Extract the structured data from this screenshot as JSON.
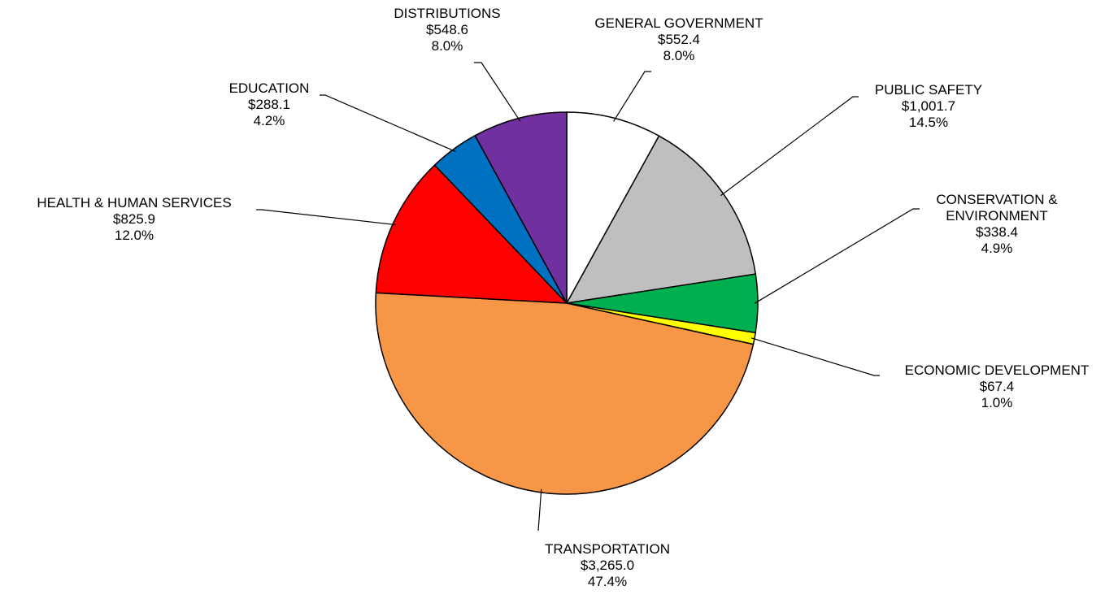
{
  "chart_data": {
    "type": "pie",
    "start_angle_deg": 0,
    "direction": "clockwise",
    "slices": [
      {
        "label": "GENERAL GOVERNMENT",
        "lines": [
          "GENERAL GOVERNMENT"
        ],
        "value": 552.4,
        "value_label": "$552.4",
        "percent_label": "8.0%",
        "color": "#ffffff"
      },
      {
        "label": "PUBLIC SAFETY",
        "lines": [
          "PUBLIC SAFETY"
        ],
        "value": 1001.7,
        "value_label": "$1,001.7",
        "percent_label": "14.5%",
        "color": "#bfbfbf"
      },
      {
        "label": "CONSERVATION & ENVIRONMENT",
        "lines": [
          "CONSERVATION &",
          "ENVIRONMENT"
        ],
        "value": 338.4,
        "value_label": "$338.4",
        "percent_label": "4.9%",
        "color": "#00b050"
      },
      {
        "label": "ECONOMIC DEVELOPMENT",
        "lines": [
          "ECONOMIC DEVELOPMENT"
        ],
        "value": 67.4,
        "value_label": "$67.4",
        "percent_label": "1.0%",
        "color": "#ffff00"
      },
      {
        "label": "TRANSPORTATION",
        "lines": [
          "TRANSPORTATION"
        ],
        "value": 3265.0,
        "value_label": "$3,265.0",
        "percent_label": "47.4%",
        "color": "#f79646"
      },
      {
        "label": "HEALTH & HUMAN SERVICES",
        "lines": [
          "HEALTH & HUMAN SERVICES"
        ],
        "value": 825.9,
        "value_label": "$825.9",
        "percent_label": "12.0%",
        "color": "#ff0000"
      },
      {
        "label": "EDUCATION",
        "lines": [
          "EDUCATION"
        ],
        "value": 288.1,
        "value_label": "$288.1",
        "percent_label": "4.2%",
        "color": "#0070c0"
      },
      {
        "label": "DISTRIBUTIONS",
        "lines": [
          "DISTRIBUTIONS"
        ],
        "value": 548.6,
        "value_label": "$548.6",
        "percent_label": "8.0%",
        "color": "#7030a0"
      }
    ]
  }
}
